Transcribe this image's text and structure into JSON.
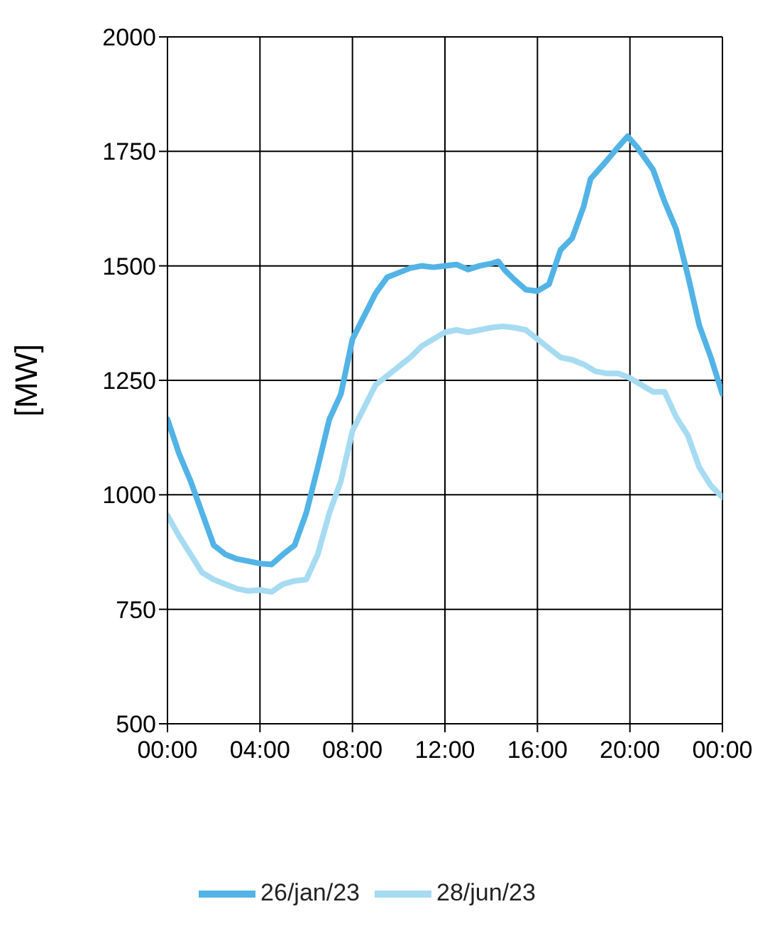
{
  "chart_data": {
    "type": "line",
    "ylabel": "[MW]",
    "xlim": [
      0,
      24
    ],
    "xticks": [
      {
        "value": 0,
        "label": "00:00"
      },
      {
        "value": 4,
        "label": "04:00"
      },
      {
        "value": 8,
        "label": "08:00"
      },
      {
        "value": 12,
        "label": "12:00"
      },
      {
        "value": 16,
        "label": "16:00"
      },
      {
        "value": 20,
        "label": "20:00"
      },
      {
        "value": 24,
        "label": "00:00"
      }
    ],
    "ylim": [
      500,
      2000
    ],
    "yticks": [
      500,
      750,
      1000,
      1250,
      1500,
      1750,
      2000
    ],
    "grid": true,
    "legend": "bottom",
    "marker": "none",
    "line_style": "solid",
    "series": [
      {
        "name": "28/jun/23",
        "color": "#a6dbf2",
        "x": [
          0,
          0.5,
          1,
          1.5,
          2,
          2.5,
          3,
          3.5,
          4,
          4.5,
          5,
          5.5,
          6,
          6.5,
          7,
          7.5,
          8,
          8.5,
          9,
          9.5,
          10,
          10.5,
          11,
          11.5,
          12,
          12.5,
          13,
          13.5,
          14,
          14.5,
          15,
          15.5,
          16,
          16.5,
          17,
          17.5,
          18,
          18.5,
          19,
          19.5,
          20,
          20.5,
          21,
          21.5,
          22,
          22.5,
          23,
          23.5,
          24
        ],
        "values": [
          955,
          910,
          870,
          830,
          815,
          805,
          795,
          790,
          792,
          788,
          805,
          812,
          815,
          870,
          960,
          1030,
          1140,
          1190,
          1240,
          1260,
          1280,
          1300,
          1325,
          1340,
          1355,
          1360,
          1355,
          1360,
          1365,
          1368,
          1365,
          1360,
          1340,
          1320,
          1300,
          1295,
          1285,
          1270,
          1265,
          1265,
          1255,
          1240,
          1225,
          1225,
          1170,
          1130,
          1060,
          1020,
          995
        ]
      },
      {
        "name": "26/jan/23",
        "color": "#52b3e6",
        "x": [
          0,
          0.5,
          1,
          1.5,
          2,
          2.5,
          3,
          3.5,
          4,
          4.5,
          5,
          5.5,
          6,
          6.5,
          7,
          7.5,
          8,
          8.5,
          9,
          9.5,
          10,
          10.5,
          11,
          11.5,
          12,
          12.5,
          13,
          13.5,
          14,
          14.3,
          14.6,
          15,
          15.5,
          16,
          16.5,
          17,
          17.5,
          18,
          18.3,
          19,
          19.5,
          19.9,
          20.3,
          21,
          21.5,
          22,
          22.5,
          23,
          23.5,
          24
        ],
        "values": [
          1165,
          1090,
          1030,
          960,
          890,
          870,
          860,
          855,
          850,
          848,
          870,
          890,
          960,
          1060,
          1165,
          1220,
          1340,
          1390,
          1440,
          1475,
          1485,
          1495,
          1500,
          1497,
          1500,
          1503,
          1492,
          1500,
          1505,
          1510,
          1490,
          1470,
          1448,
          1445,
          1460,
          1535,
          1560,
          1630,
          1690,
          1730,
          1760,
          1783,
          1760,
          1710,
          1640,
          1580,
          1480,
          1370,
          1300,
          1220
        ]
      }
    ]
  }
}
